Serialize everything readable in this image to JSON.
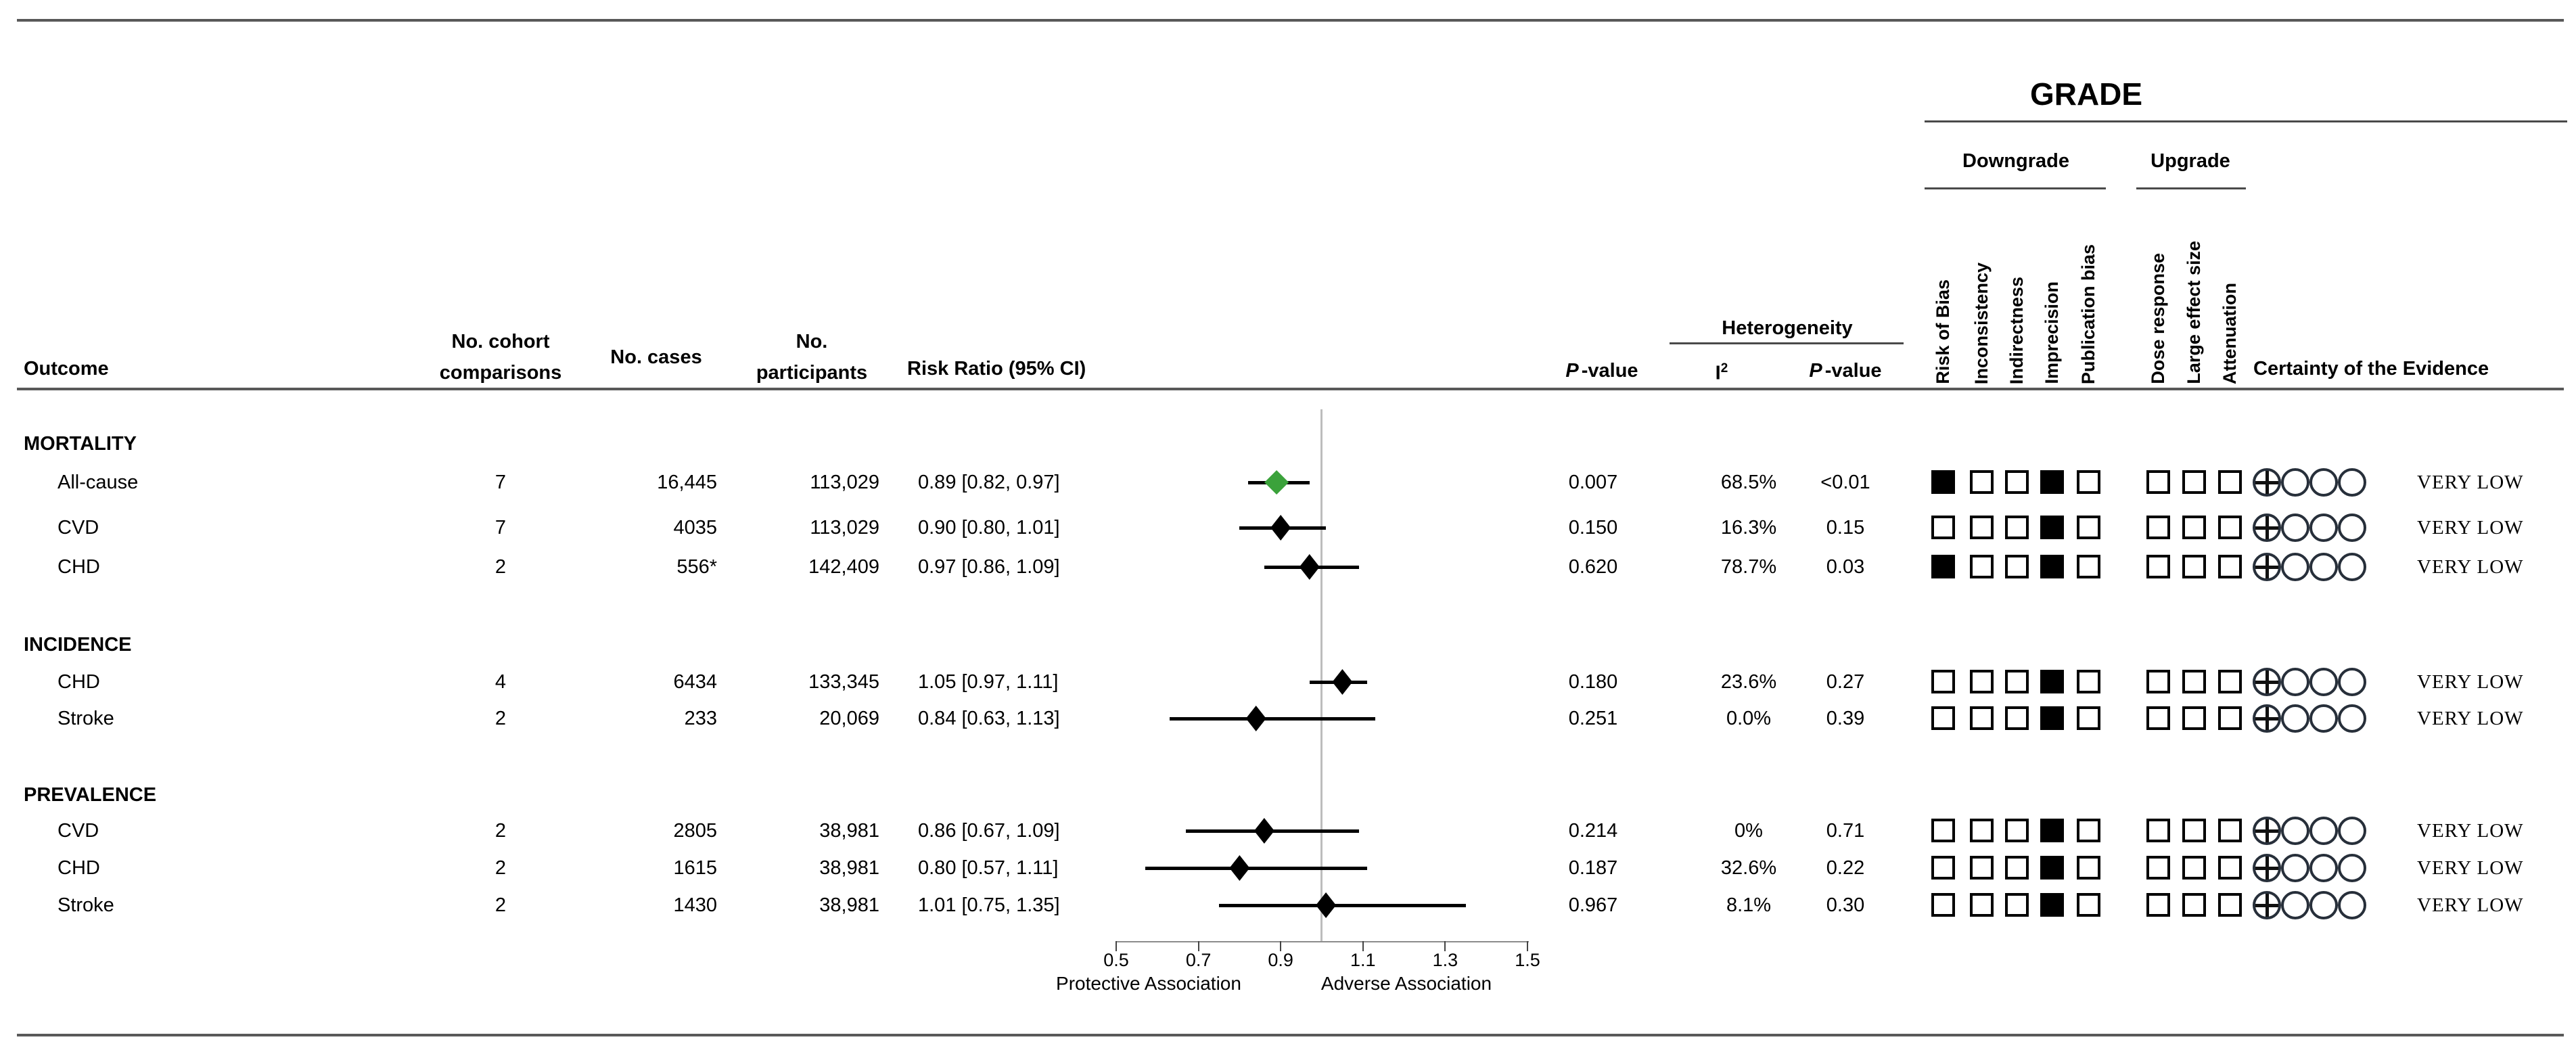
{
  "table": {
    "headers": {
      "outcome": "Outcome",
      "cohort": "No. cohort\ncomparisons",
      "cases": "No. cases",
      "participants": "No.\nparticipants",
      "risk_ratio": "Risk Ratio (95% CI)",
      "p_italic": "P",
      "p_rest": "-value",
      "heterogeneity": "Heterogeneity",
      "i2_base": "I",
      "i2_sup": "2",
      "het_p_italic": "P",
      "het_p_rest": "-value",
      "certainty": "Certainty of the Evidence"
    },
    "grade": {
      "title": "GRADE",
      "downgrade_label": "Downgrade",
      "upgrade_label": "Upgrade",
      "downgrade_columns": [
        "Risk of Bias",
        "Inconsistency",
        "Indirectness",
        "Imprecision",
        "Publication bias"
      ],
      "upgrade_columns": [
        "Dose response",
        "Large effect size",
        "Attenuation"
      ]
    },
    "sections": [
      {
        "label": "MORTALITY",
        "rows": [
          {
            "outcome": "All-cause",
            "cohorts": "7",
            "cases": "16,445",
            "participants": "113,029",
            "rr_text": "0.89 [0.82, 0.97]",
            "rr": 0.89,
            "lo": 0.82,
            "hi": 0.97,
            "diamond": "green",
            "p": "0.007",
            "i2": "68.5%",
            "p_het": "<0.01",
            "downgrade": [
              1,
              0,
              0,
              1,
              0
            ],
            "upgrade": [
              0,
              0,
              0
            ],
            "circles": [
              "plus",
              "empty",
              "empty",
              "empty"
            ],
            "certainty": "VERY LOW"
          },
          {
            "outcome": "CVD",
            "cohorts": "7",
            "cases": "4035",
            "participants": "113,029",
            "rr_text": "0.90 [0.80, 1.01]",
            "rr": 0.9,
            "lo": 0.8,
            "hi": 1.01,
            "diamond": "black",
            "p": "0.150",
            "i2": "16.3%",
            "p_het": "0.15",
            "downgrade": [
              0,
              0,
              0,
              1,
              0
            ],
            "upgrade": [
              0,
              0,
              0
            ],
            "circles": [
              "plus",
              "empty",
              "empty",
              "empty"
            ],
            "certainty": "VERY LOW"
          },
          {
            "outcome": "CHD",
            "cohorts": "2",
            "cases": "556*",
            "participants": "142,409",
            "rr_text": "0.97 [0.86, 1.09]",
            "rr": 0.97,
            "lo": 0.86,
            "hi": 1.09,
            "diamond": "black",
            "p": "0.620",
            "i2": "78.7%",
            "p_het": "0.03",
            "downgrade": [
              1,
              0,
              0,
              1,
              0
            ],
            "upgrade": [
              0,
              0,
              0
            ],
            "circles": [
              "plus",
              "empty",
              "empty",
              "empty"
            ],
            "certainty": "VERY LOW"
          }
        ]
      },
      {
        "label": "INCIDENCE",
        "rows": [
          {
            "outcome": "CHD",
            "cohorts": "4",
            "cases": "6434",
            "participants": "133,345",
            "rr_text": "1.05 [0.97, 1.11]",
            "rr": 1.05,
            "lo": 0.97,
            "hi": 1.11,
            "diamond": "black",
            "p": "0.180",
            "i2": "23.6%",
            "p_het": "0.27",
            "downgrade": [
              0,
              0,
              0,
              1,
              0
            ],
            "upgrade": [
              0,
              0,
              0
            ],
            "circles": [
              "plus",
              "empty",
              "empty",
              "empty"
            ],
            "certainty": "VERY LOW"
          },
          {
            "outcome": "Stroke",
            "cohorts": "2",
            "cases": "233",
            "participants": "20,069",
            "rr_text": "0.84 [0.63, 1.13]",
            "rr": 0.84,
            "lo": 0.63,
            "hi": 1.13,
            "diamond": "black",
            "p": "0.251",
            "i2": "0.0%",
            "p_het": "0.39",
            "downgrade": [
              0,
              0,
              0,
              1,
              0
            ],
            "upgrade": [
              0,
              0,
              0
            ],
            "circles": [
              "plus",
              "empty",
              "empty",
              "empty"
            ],
            "certainty": "VERY LOW"
          }
        ]
      },
      {
        "label": "PREVALENCE",
        "rows": [
          {
            "outcome": "CVD",
            "cohorts": "2",
            "cases": "2805",
            "participants": "38,981",
            "rr_text": "0.86 [0.67, 1.09]",
            "rr": 0.86,
            "lo": 0.67,
            "hi": 1.09,
            "diamond": "black",
            "p": "0.214",
            "i2": "0%",
            "p_het": "0.71",
            "downgrade": [
              0,
              0,
              0,
              1,
              0
            ],
            "upgrade": [
              0,
              0,
              0
            ],
            "circles": [
              "plus",
              "empty",
              "empty",
              "empty"
            ],
            "certainty": "VERY LOW"
          },
          {
            "outcome": "CHD",
            "cohorts": "2",
            "cases": "1615",
            "participants": "38,981",
            "rr_text": "0.80 [0.57, 1.11]",
            "rr": 0.8,
            "lo": 0.57,
            "hi": 1.11,
            "diamond": "black",
            "p": "0.187",
            "i2": "32.6%",
            "p_het": "0.22",
            "downgrade": [
              0,
              0,
              0,
              1,
              0
            ],
            "upgrade": [
              0,
              0,
              0
            ],
            "circles": [
              "plus",
              "empty",
              "empty",
              "empty"
            ],
            "certainty": "VERY LOW"
          },
          {
            "outcome": "Stroke",
            "cohorts": "2",
            "cases": "1430",
            "participants": "38,981",
            "rr_text": "1.01 [0.75, 1.35]",
            "rr": 1.01,
            "lo": 0.75,
            "hi": 1.35,
            "diamond": "black",
            "p": "0.967",
            "i2": "8.1%",
            "p_het": "0.30",
            "downgrade": [
              0,
              0,
              0,
              1,
              0
            ],
            "upgrade": [
              0,
              0,
              0
            ],
            "circles": [
              "plus",
              "empty",
              "empty",
              "empty"
            ],
            "certainty": "VERY LOW"
          }
        ]
      }
    ]
  },
  "axis": {
    "ticks": [
      "0.5",
      "0.7",
      "0.9",
      "1.1",
      "1.3",
      "1.5"
    ],
    "tick_values": [
      0.5,
      0.7,
      0.9,
      1.1,
      1.3,
      1.5
    ],
    "left_label": "Protective Association",
    "right_label": "Adverse Association",
    "reference_value": 1.0
  },
  "colors": {
    "significant_diamond": "#3ba23b",
    "diamond": "#000000",
    "reference_line": "#bdbdbd",
    "rule": "#595959"
  },
  "chart_data": {
    "type": "scatter",
    "subtype": "forest-plot",
    "title": "",
    "xlabel": "Risk Ratio (95% CI)",
    "xlim": [
      0.5,
      1.5
    ],
    "x_ticks": [
      0.5,
      0.7,
      0.9,
      1.1,
      1.3,
      1.5
    ],
    "reference_line": 1.0,
    "annotations": [
      "Protective Association",
      "Adverse Association"
    ],
    "points": [
      {
        "group": "MORTALITY",
        "outcome": "All-cause",
        "rr": 0.89,
        "ci": [
          0.82,
          0.97
        ],
        "p_value": 0.007,
        "i2": "68.5%",
        "het_p": "<0.01",
        "certainty": "VERY LOW",
        "significant": true
      },
      {
        "group": "MORTALITY",
        "outcome": "CVD",
        "rr": 0.9,
        "ci": [
          0.8,
          1.01
        ],
        "p_value": 0.15,
        "i2": "16.3%",
        "het_p": "0.15",
        "certainty": "VERY LOW",
        "significant": false
      },
      {
        "group": "MORTALITY",
        "outcome": "CHD",
        "rr": 0.97,
        "ci": [
          0.86,
          1.09
        ],
        "p_value": 0.62,
        "i2": "78.7%",
        "het_p": "0.03",
        "certainty": "VERY LOW",
        "significant": false
      },
      {
        "group": "INCIDENCE",
        "outcome": "CHD",
        "rr": 1.05,
        "ci": [
          0.97,
          1.11
        ],
        "p_value": 0.18,
        "i2": "23.6%",
        "het_p": "0.27",
        "certainty": "VERY LOW",
        "significant": false
      },
      {
        "group": "INCIDENCE",
        "outcome": "Stroke",
        "rr": 0.84,
        "ci": [
          0.63,
          1.13
        ],
        "p_value": 0.251,
        "i2": "0.0%",
        "het_p": "0.39",
        "certainty": "VERY LOW",
        "significant": false
      },
      {
        "group": "PREVALENCE",
        "outcome": "CVD",
        "rr": 0.86,
        "ci": [
          0.67,
          1.09
        ],
        "p_value": 0.214,
        "i2": "0%",
        "het_p": "0.71",
        "certainty": "VERY LOW",
        "significant": false
      },
      {
        "group": "PREVALENCE",
        "outcome": "CHD",
        "rr": 0.8,
        "ci": [
          0.57,
          1.11
        ],
        "p_value": 0.187,
        "i2": "32.6%",
        "het_p": "0.22",
        "certainty": "VERY LOW",
        "significant": false
      },
      {
        "group": "PREVALENCE",
        "outcome": "Stroke",
        "rr": 1.01,
        "ci": [
          0.75,
          1.35
        ],
        "p_value": 0.967,
        "i2": "8.1%",
        "het_p": "0.30",
        "certainty": "VERY LOW",
        "significant": false
      }
    ]
  }
}
